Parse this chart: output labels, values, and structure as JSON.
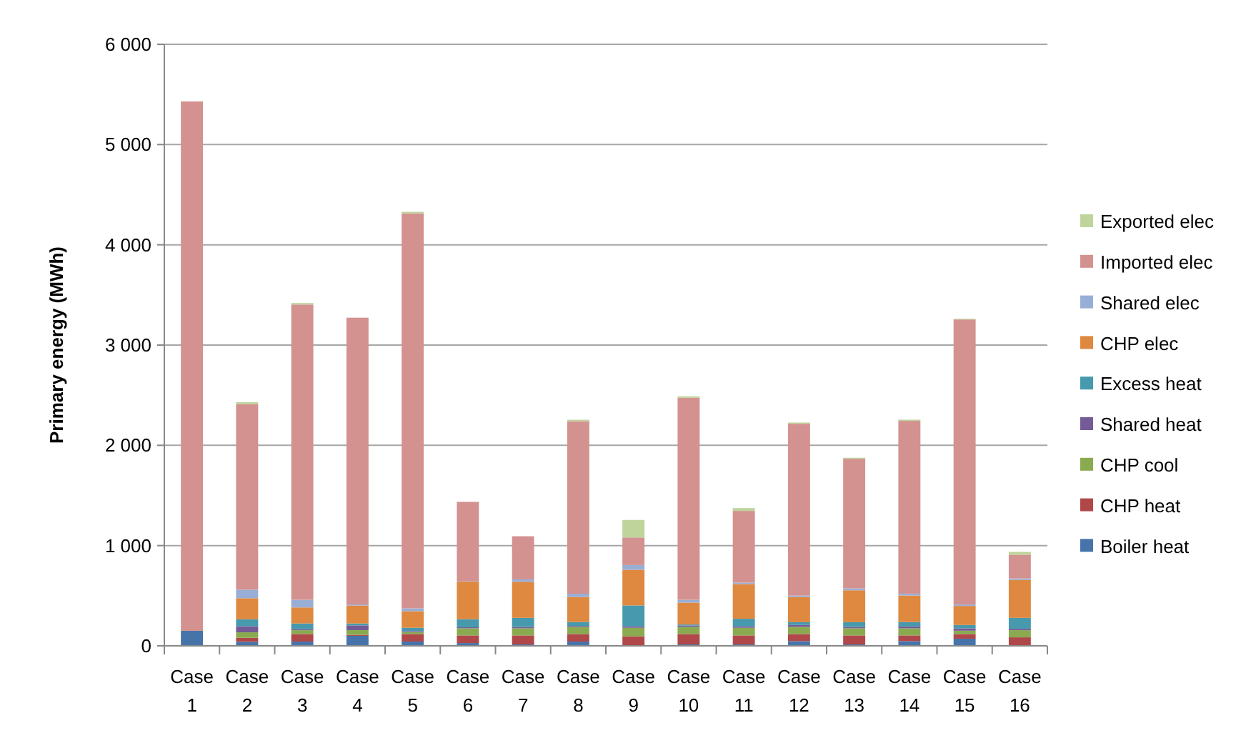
{
  "chart_data": {
    "type": "bar",
    "stacked": true,
    "ylabel": "Primary energy (MWh)",
    "categories": [
      "Case 1",
      "Case 2",
      "Case 3",
      "Case 4",
      "Case 5",
      "Case 6",
      "Case 7",
      "Case 8",
      "Case 9",
      "Case 10",
      "Case 11",
      "Case 12",
      "Case 13",
      "Case 14",
      "Case 15",
      "Case 16"
    ],
    "ylim": [
      0,
      6000
    ],
    "yticks": [
      0,
      {
        "value": 1000,
        "label": "1 000"
      },
      {
        "value": 2000,
        "label": "2 000"
      },
      {
        "value": 3000,
        "label": "3 000"
      },
      {
        "value": 4000,
        "label": "4 000"
      },
      {
        "value": 5000,
        "label": "5 000"
      },
      {
        "value": 6000,
        "label": "6 000"
      }
    ],
    "grid": "y",
    "legend": "right",
    "series": [
      {
        "name": "Boiler heat",
        "color": "#4674aa",
        "values": [
          150,
          40,
          43,
          100,
          43,
          28,
          14,
          43,
          0,
          14,
          14,
          47,
          14,
          47,
          71,
          0
        ]
      },
      {
        "name": "CHP heat",
        "color": "#b0484a",
        "values": [
          0,
          40,
          75,
          10,
          75,
          76,
          90,
          75,
          95,
          104,
          90,
          71,
          90,
          57,
          47,
          85
        ]
      },
      {
        "name": "CHP cool",
        "color": "#8aaa50",
        "values": [
          0,
          55,
          38,
          47,
          19,
          71,
          71,
          71,
          85,
          71,
          76,
          71,
          71,
          71,
          33,
          71
        ]
      },
      {
        "name": "Shared heat",
        "color": "#745a96",
        "values": [
          0,
          60,
          10,
          47,
          10,
          10,
          14,
          10,
          14,
          14,
          14,
          19,
          14,
          19,
          24,
          14
        ]
      },
      {
        "name": "Excess heat",
        "color": "#4799ad",
        "values": [
          0,
          70,
          57,
          19,
          33,
          81,
          90,
          38,
          209,
          10,
          76,
          28,
          47,
          43,
          33,
          109
        ]
      },
      {
        "name": "CHP elec",
        "color": "#de8840",
        "values": [
          0,
          210,
          160,
          180,
          166,
          375,
          360,
          250,
          356,
          218,
          346,
          251,
          318,
          265,
          190,
          379
        ]
      },
      {
        "name": "Shared elec",
        "color": "#98aed6",
        "values": [
          0,
          85,
          76,
          10,
          28,
          5,
          24,
          33,
          47,
          28,
          14,
          14,
          19,
          19,
          14,
          14
        ]
      },
      {
        "name": "Imported elec",
        "color": "#d39190",
        "values": [
          5280,
          1850,
          2945,
          2860,
          3940,
          790,
          430,
          1720,
          275,
          2015,
          716,
          1714,
          1293,
          1723,
          2843,
          237
        ]
      },
      {
        "name": "Exported elec",
        "color": "#bed49b",
        "values": [
          0,
          20,
          15,
          0,
          15,
          0,
          0,
          15,
          175,
          15,
          28,
          12,
          10,
          12,
          8,
          28
        ]
      }
    ]
  }
}
